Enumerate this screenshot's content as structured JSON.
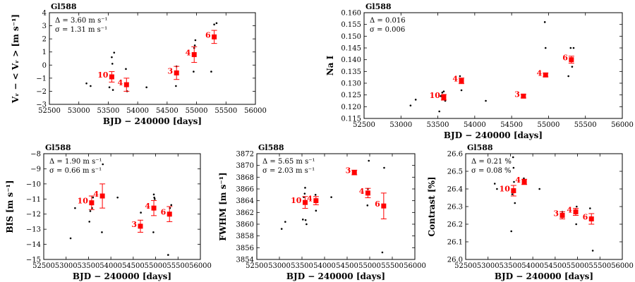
{
  "figure": {
    "name": "Gl588 activity indicators vs time"
  },
  "colors": {
    "raw": "#000000",
    "binned": "#ff0000",
    "axes": "#000000",
    "background": "#ffffff"
  },
  "chart_data": [
    {
      "id": "vr",
      "type": "scatter",
      "title": "Gl588",
      "xlabel": "BJD − 240000 [days]",
      "ylabel": "Vᵣ − < Vᵣ > [m s⁻¹]",
      "xlim": [
        52500,
        56000
      ],
      "ylim": [
        -3,
        4
      ],
      "xticks": [
        52500,
        53000,
        53500,
        54000,
        54500,
        55000,
        55500,
        56000
      ],
      "xtick_labels": [
        "52500",
        "53000",
        "53500",
        "54000",
        "54500",
        "55000",
        "55500",
        "56000"
      ],
      "yticks": [
        -3,
        -2,
        -1,
        0,
        1,
        2,
        3,
        4
      ],
      "ytick_labels": [
        "−3",
        "−2",
        "−1",
        "0",
        "1",
        "2",
        "3",
        "4"
      ],
      "annotations": [
        "Δ = 3.60 m s⁻¹",
        "σ = 1.31 m s⁻¹"
      ],
      "annot_pos": "top-left",
      "raw": {
        "x": [
          53130,
          53200,
          53520,
          53560,
          53570,
          53580,
          53600,
          53800,
          53810,
          53820,
          54150,
          54650,
          54660,
          54680,
          54950,
          54960,
          54970,
          54980,
          55250,
          55300,
          55340
        ],
        "y": [
          -1.4,
          -1.6,
          -1.7,
          0.6,
          0.1,
          -1.9,
          0.95,
          -0.3,
          -1.6,
          -2.0,
          -1.7,
          -1.6,
          -0.1,
          -0.5,
          -0.5,
          1.3,
          1.5,
          1.9,
          -0.5,
          3.1,
          3.2
        ]
      },
      "bins": [
        {
          "label": "10",
          "x": 53560,
          "y": -0.9,
          "err": 0.4
        },
        {
          "label": "4",
          "x": 53810,
          "y": -1.5,
          "err": 0.5
        },
        {
          "label": "3",
          "x": 54660,
          "y": -0.6,
          "err": 0.5
        },
        {
          "label": "4",
          "x": 54960,
          "y": 0.8,
          "err": 0.6
        },
        {
          "label": "6",
          "x": 55300,
          "y": 2.15,
          "err": 0.5
        }
      ]
    },
    {
      "id": "nai",
      "type": "scatter",
      "title": "Gl588",
      "xlabel": "BJD − 240000 [days]",
      "ylabel": "Na I",
      "xlim": [
        52500,
        56000
      ],
      "ylim": [
        0.115,
        0.16
      ],
      "xticks": [
        52500,
        53000,
        53500,
        54000,
        54500,
        55000,
        55500,
        56000
      ],
      "xtick_labels": [
        "52500",
        "53000",
        "53500",
        "54000",
        "54500",
        "55000",
        "55500",
        "56000"
      ],
      "yticks": [
        0.115,
        0.12,
        0.125,
        0.13,
        0.135,
        0.14,
        0.145,
        0.15,
        0.155,
        0.16
      ],
      "ytick_labels": [
        "0.115",
        "0.120",
        "0.125",
        "0.130",
        "0.135",
        "0.140",
        "0.145",
        "0.150",
        "0.155",
        "0.160"
      ],
      "annotations": [
        "Δ = 0.016",
        "σ = 0.006"
      ],
      "annot_pos": "top-left",
      "raw": {
        "x": [
          53130,
          53200,
          53520,
          53540,
          53560,
          53580,
          53600,
          53800,
          53820,
          53830,
          54150,
          54650,
          54660,
          54950,
          54960,
          54980,
          55270,
          55300,
          55320,
          55340
        ],
        "y": [
          0.1205,
          0.123,
          0.118,
          0.1245,
          0.126,
          0.1265,
          0.1225,
          0.133,
          0.127,
          0.131,
          0.1225,
          0.124,
          0.1245,
          0.156,
          0.145,
          0.133,
          0.133,
          0.145,
          0.137,
          0.145
        ]
      },
      "bins": [
        {
          "label": "10",
          "x": 53580,
          "y": 0.124,
          "err": 0.0012
        },
        {
          "label": "4",
          "x": 53820,
          "y": 0.131,
          "err": 0.0012
        },
        {
          "label": "3",
          "x": 54660,
          "y": 0.1245,
          "err": 0.0008
        },
        {
          "label": "4",
          "x": 54960,
          "y": 0.1335,
          "err": 0.0008
        },
        {
          "label": "6",
          "x": 55310,
          "y": 0.14,
          "err": 0.0015
        }
      ]
    },
    {
      "id": "bis",
      "type": "scatter",
      "title": "Gl588",
      "xlabel": "BJD − 240000 [days]",
      "ylabel": "BIS [m s⁻¹]",
      "xlim": [
        52500,
        56000
      ],
      "ylim": [
        -15,
        -8
      ],
      "xticks": [
        52500,
        53000,
        53500,
        54000,
        54500,
        55000,
        55500,
        56000
      ],
      "xtick_labels": [
        "52500",
        "53000",
        "53500",
        "54000",
        "54500",
        "55000",
        "55500",
        "56000"
      ],
      "yticks": [
        -15,
        -14,
        -13,
        -12,
        -11,
        -10,
        -9,
        -8
      ],
      "ytick_labels": [
        "−15",
        "−14",
        "−13",
        "−12",
        "−11",
        "−10",
        "−9",
        "−8"
      ],
      "annotations": [
        "Δ = 1.90 m s⁻¹",
        "σ = 0.66 m s⁻¹"
      ],
      "annot_pos": "top-left",
      "raw": {
        "x": [
          53100,
          53200,
          53520,
          53540,
          53570,
          53580,
          53600,
          53800,
          53820,
          54150,
          54650,
          54670,
          54950,
          54960,
          54970,
          54980,
          55280,
          55320,
          55350
        ],
        "y": [
          -13.6,
          -11.6,
          -12.5,
          -11.8,
          -11.2,
          -11.6,
          -10.9,
          -13.2,
          -8.7,
          -10.9,
          -12.7,
          -11.9,
          -13.2,
          -10.7,
          -10.9,
          -11.0,
          -14.7,
          -11.6,
          -11.4
        ]
      },
      "bins": [
        {
          "label": "10",
          "x": 53570,
          "y": -11.25,
          "err": 0.45
        },
        {
          "label": "4",
          "x": 53810,
          "y": -10.8,
          "err": 0.8
        },
        {
          "label": "3",
          "x": 54660,
          "y": -12.8,
          "err": 0.4
        },
        {
          "label": "4",
          "x": 54960,
          "y": -11.6,
          "err": 0.5
        },
        {
          "label": "6",
          "x": 55310,
          "y": -12.0,
          "err": 0.5
        }
      ]
    },
    {
      "id": "fwhm",
      "type": "scatter",
      "title": "Gl588",
      "xlabel": "BJD − 240000 [days]",
      "ylabel": "FWHM [m s⁻¹]",
      "xlim": [
        52500,
        56000
      ],
      "ylim": [
        3854,
        3872
      ],
      "xticks": [
        52500,
        53000,
        53500,
        54000,
        54500,
        55000,
        55500,
        56000
      ],
      "xtick_labels": [
        "52500",
        "53000",
        "53500",
        "54000",
        "54500",
        "55000",
        "55500",
        "56000"
      ],
      "yticks": [
        3854,
        3856,
        3858,
        3860,
        3862,
        3864,
        3866,
        3868,
        3870,
        3872
      ],
      "ytick_labels": [
        "3854",
        "3856",
        "3858",
        "3860",
        "3862",
        "3864",
        "3866",
        "3868",
        "3870",
        "3872"
      ],
      "annotations": [
        "Δ = 5.65 m s⁻¹",
        "σ = 2.03 m s⁻¹"
      ],
      "annot_pos": "top-left",
      "raw": {
        "x": [
          53050,
          53130,
          53520,
          53540,
          53560,
          53570,
          53580,
          53600,
          53800,
          53810,
          53820,
          54150,
          54650,
          54670,
          54950,
          54960,
          54980,
          55280,
          55320
        ],
        "y": [
          3859.2,
          3860.4,
          3860.8,
          3864.6,
          3865.2,
          3866.2,
          3860.7,
          3860.0,
          3865.0,
          3862.3,
          3864.0,
          3864.6,
          3868.6,
          3868.8,
          3863.2,
          3866.0,
          3870.8,
          3855.2,
          3869.6
        ]
      },
      "bins": [
        {
          "label": "10",
          "x": 53570,
          "y": 3863.7,
          "err": 1.0
        },
        {
          "label": "4",
          "x": 53810,
          "y": 3864.0,
          "err": 0.7
        },
        {
          "label": "3",
          "x": 54660,
          "y": 3868.8,
          "err": 0.4
        },
        {
          "label": "4",
          "x": 54960,
          "y": 3865.3,
          "err": 0.8
        },
        {
          "label": "6",
          "x": 55310,
          "y": 3863.1,
          "err": 2.2
        }
      ]
    },
    {
      "id": "contrast",
      "type": "scatter",
      "title": "Gl588",
      "xlabel": "BJD − 240000 [days]",
      "ylabel": "Contrast [%]",
      "xlim": [
        52500,
        56000
      ],
      "ylim": [
        26.0,
        26.6
      ],
      "xticks": [
        52500,
        53000,
        53500,
        54000,
        54500,
        55000,
        55500,
        56000
      ],
      "xtick_labels": [
        "52500",
        "53000",
        "53500",
        "54000",
        "54500",
        "55000",
        "55500",
        "56000"
      ],
      "yticks": [
        26.0,
        26.1,
        26.2,
        26.3,
        26.4,
        26.5,
        26.6
      ],
      "ytick_labels": [
        "26.0",
        "26.1",
        "26.2",
        "26.3",
        "26.4",
        "26.5",
        "26.6"
      ],
      "annotations": [
        "Δ = 0.21 %",
        "σ = 0.08 %"
      ],
      "annot_pos": "top-left",
      "raw": {
        "x": [
          53150,
          53200,
          53520,
          53540,
          53560,
          53570,
          53580,
          53600,
          53800,
          53810,
          53820,
          54150,
          54650,
          54660,
          54950,
          54960,
          54970,
          54980,
          55280,
          55300,
          55340
        ],
        "y": [
          26.43,
          26.4,
          26.16,
          26.37,
          26.58,
          26.52,
          26.44,
          26.32,
          26.46,
          26.43,
          26.44,
          26.4,
          26.24,
          26.27,
          26.28,
          26.26,
          26.2,
          26.3,
          26.29,
          26.24,
          26.05
        ]
      },
      "bins": [
        {
          "label": "10",
          "x": 53570,
          "y": 26.39,
          "err": 0.03
        },
        {
          "label": "4",
          "x": 53810,
          "y": 26.44,
          "err": 0.015
        },
        {
          "label": "3",
          "x": 54660,
          "y": 26.25,
          "err": 0.02
        },
        {
          "label": "4",
          "x": 54960,
          "y": 26.27,
          "err": 0.02
        },
        {
          "label": "6",
          "x": 55310,
          "y": 26.23,
          "err": 0.03
        }
      ]
    }
  ]
}
